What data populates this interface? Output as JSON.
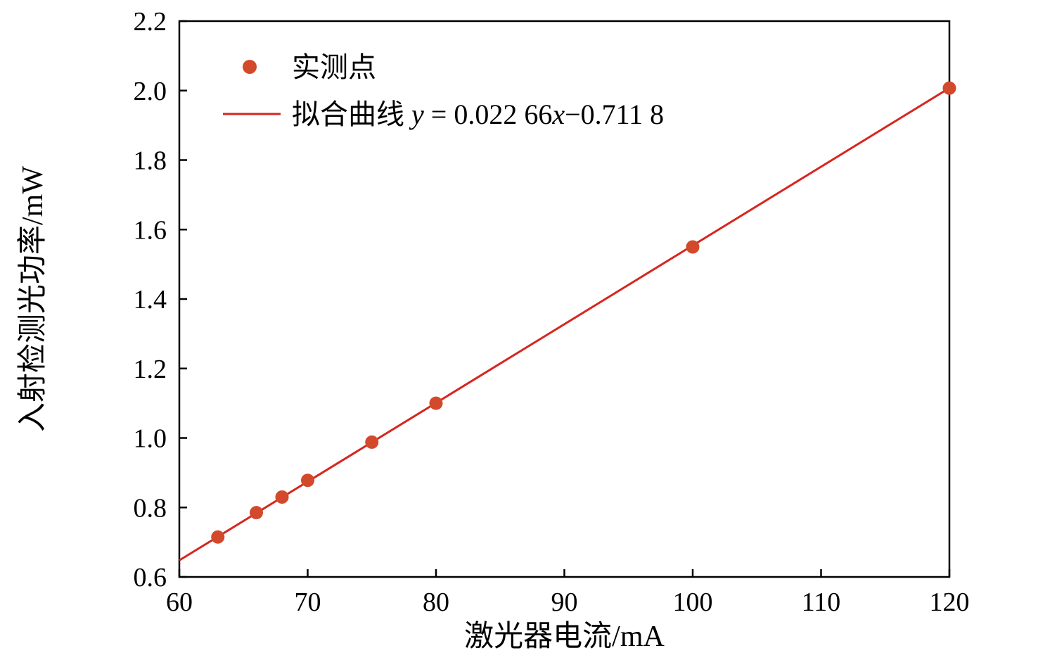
{
  "figure": {
    "background": "#ffffff"
  },
  "chart_data": {
    "type": "scatter",
    "title": "",
    "xlabel": "激光器电流/mA",
    "ylabel": "入射检测光功率/mW",
    "xlim": [
      60,
      120
    ],
    "ylim": [
      0.6,
      2.2
    ],
    "x_ticks": [
      60,
      70,
      80,
      90,
      100,
      110,
      120
    ],
    "y_ticks": [
      0.6,
      0.8,
      1.0,
      1.2,
      1.4,
      1.6,
      1.8,
      2.0,
      2.2
    ],
    "grid": false,
    "legend_position": "top-left",
    "axis_color": "#000000",
    "series": [
      {
        "name": "实测点",
        "type": "scatter",
        "marker": "circle",
        "color": "#d2492b",
        "points": [
          [
            63,
            0.715
          ],
          [
            66,
            0.785
          ],
          [
            68,
            0.83
          ],
          [
            70,
            0.878
          ],
          [
            75,
            0.988
          ],
          [
            80,
            1.1
          ],
          [
            100,
            1.55
          ],
          [
            120,
            2.007
          ]
        ]
      },
      {
        "name": "拟合曲线 y = 0.022 66x−0.711 8",
        "type": "line",
        "color": "#d6261f",
        "fit": {
          "slope": 0.02266,
          "intercept": -0.7118,
          "x_range": [
            60,
            120
          ]
        }
      }
    ],
    "legend": {
      "points_label": "实测点",
      "fit_label_parts": [
        {
          "t": "拟合曲线 ",
          "italic": false
        },
        {
          "t": "y",
          "italic": true
        },
        {
          "t": " = 0.022 66",
          "italic": false
        },
        {
          "t": "x",
          "italic": true
        },
        {
          "t": "−0.711 8",
          "italic": false
        }
      ]
    }
  }
}
